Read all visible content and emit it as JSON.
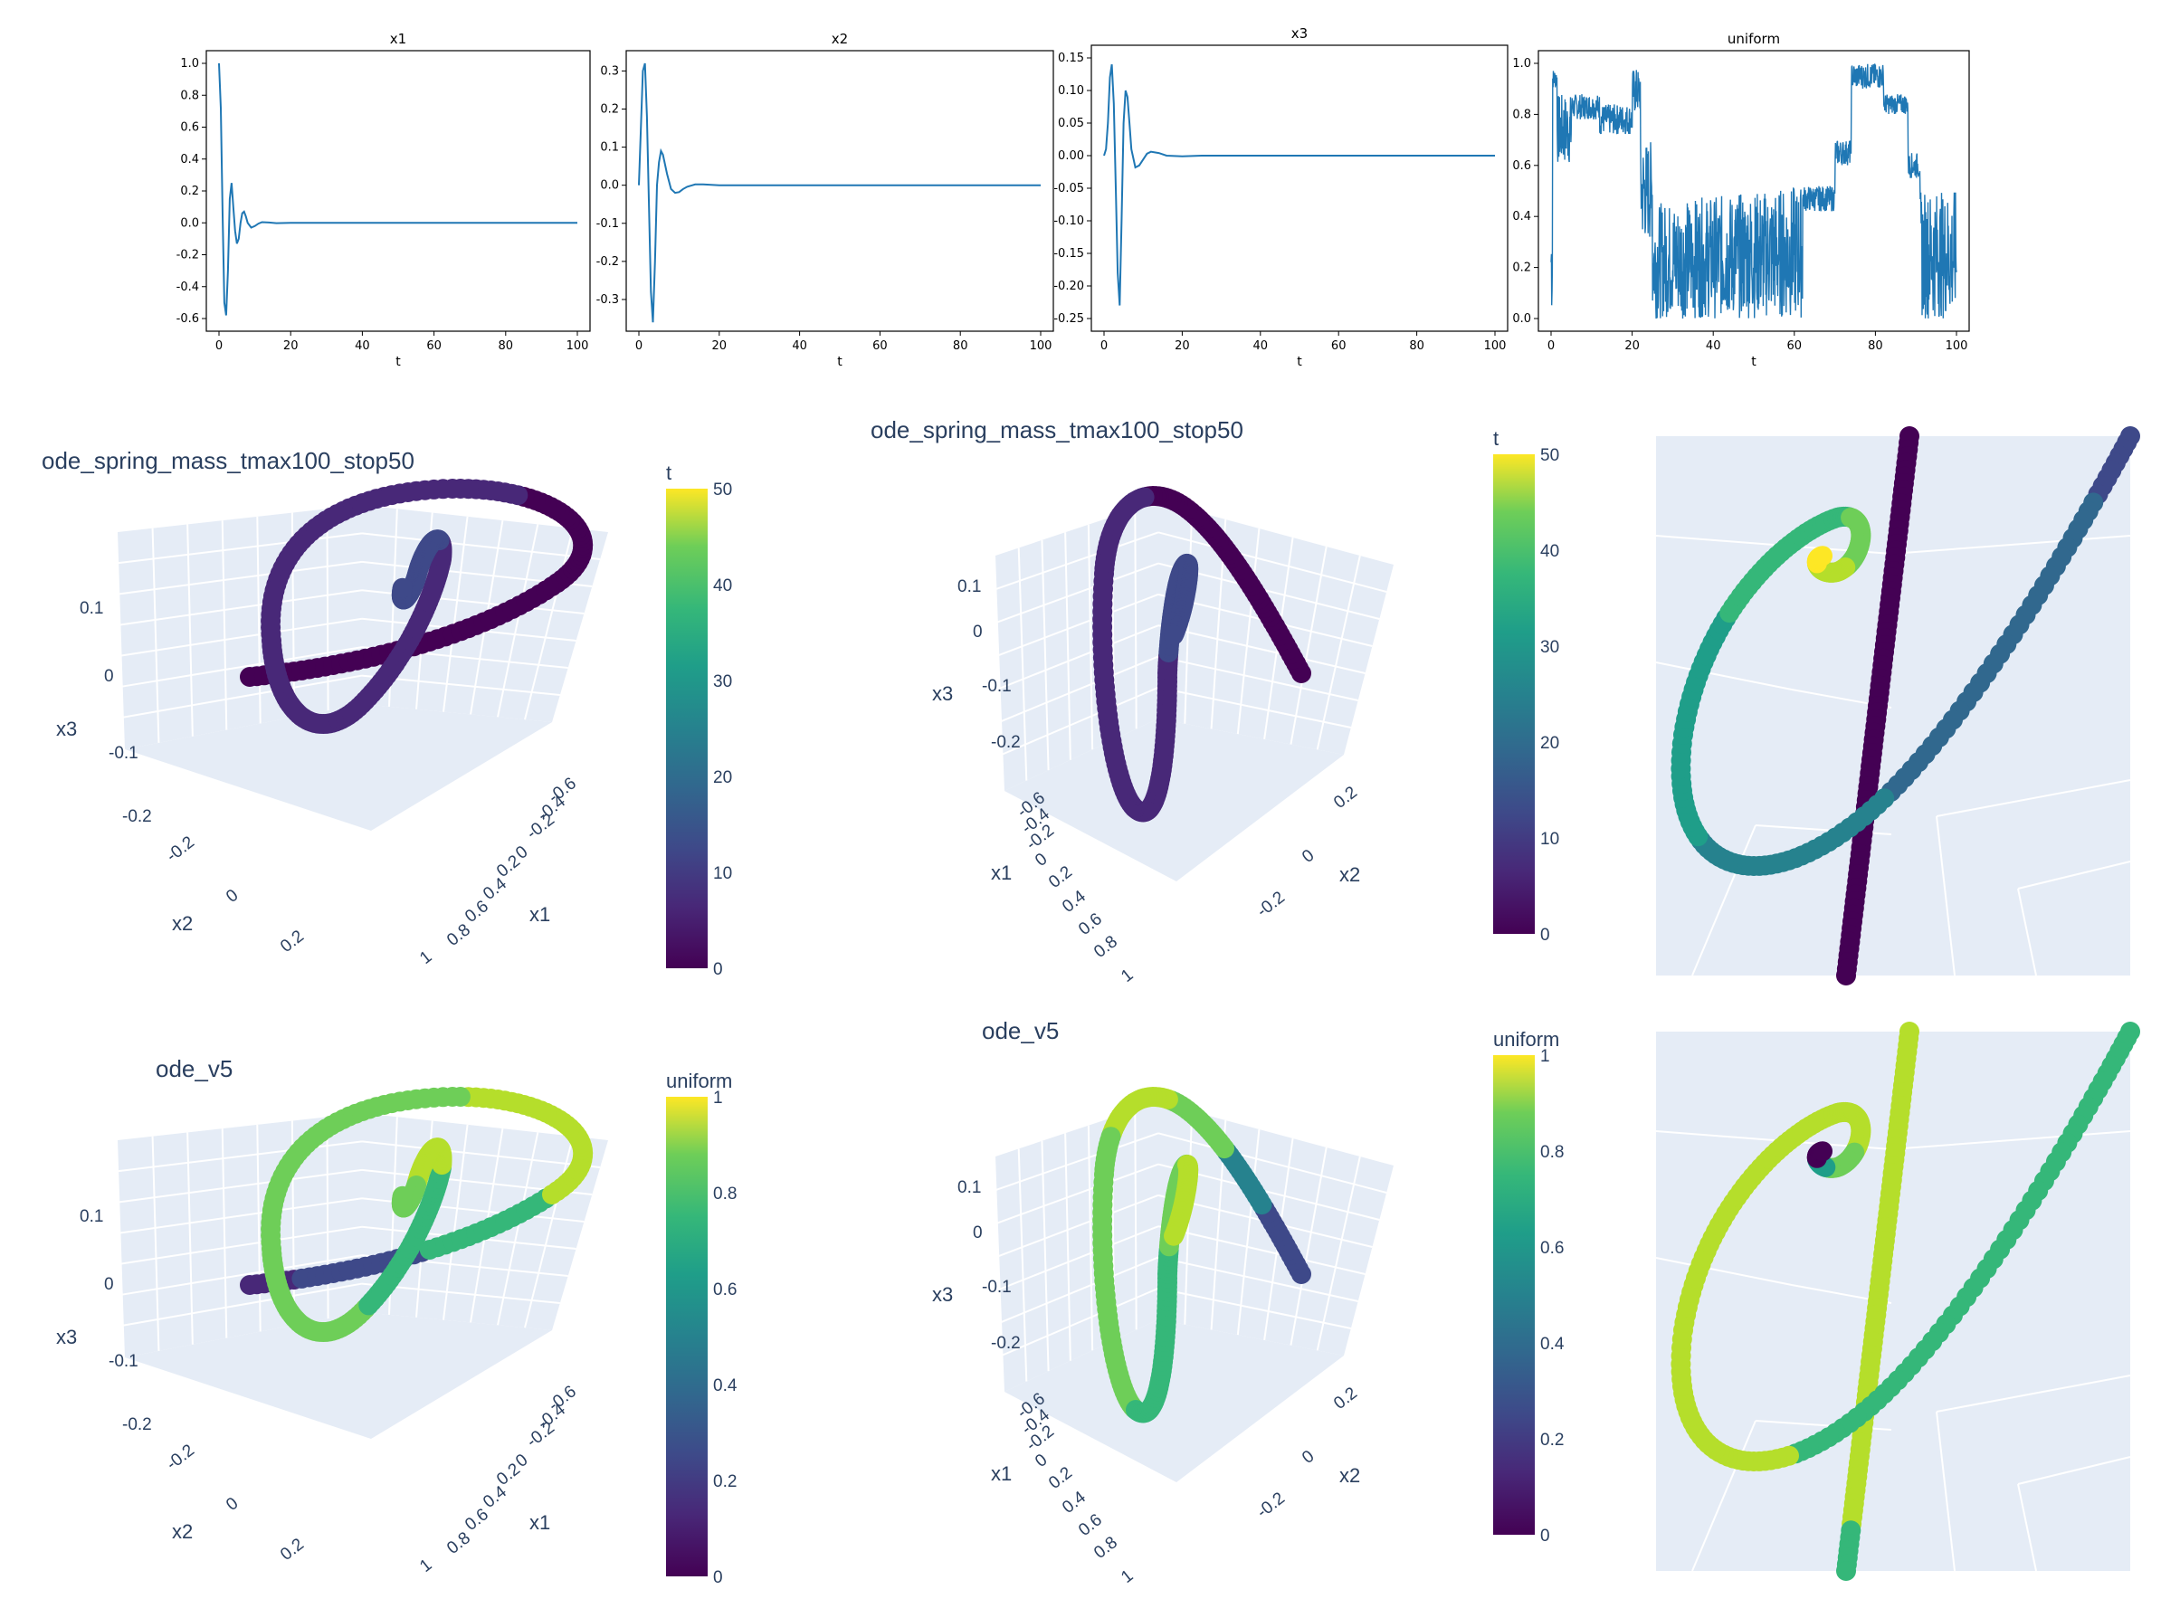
{
  "chart_data": [
    {
      "type": "line",
      "title": "x1",
      "xlabel": "t",
      "xlim": [
        0,
        100
      ],
      "ylim": [
        -0.6,
        1.0
      ],
      "xticks": [
        "0",
        "20",
        "40",
        "60",
        "80",
        "100"
      ],
      "yticks": [
        "-0.6",
        "-0.4",
        "-0.2",
        "0.0",
        "0.2",
        "0.4",
        "0.6",
        "0.8",
        "1.0"
      ],
      "x": [
        0,
        0.5,
        1,
        1.5,
        2,
        2.5,
        3,
        3.5,
        4,
        4.5,
        5,
        5.5,
        6,
        6.5,
        7,
        7.5,
        8,
        9,
        10,
        11,
        12,
        14,
        16,
        20,
        25,
        30,
        40,
        50,
        60,
        70,
        80,
        90,
        100
      ],
      "series": [
        {
          "values": [
            1.0,
            0.72,
            0.05,
            -0.5,
            -0.58,
            -0.3,
            0.15,
            0.25,
            0.1,
            -0.05,
            -0.13,
            -0.1,
            0.0,
            0.06,
            0.07,
            0.04,
            0.0,
            -0.03,
            -0.02,
            -0.005,
            0.004,
            0.002,
            -0.002,
            0.0,
            0.0,
            0.0,
            0.0,
            0.0,
            0.0,
            0.0,
            0.0,
            0.0,
            0.0
          ],
          "color": "#1f77b4"
        }
      ]
    },
    {
      "type": "line",
      "title": "x2",
      "xlabel": "t",
      "xlim": [
        0,
        100
      ],
      "ylim": [
        -0.35,
        0.32
      ],
      "xticks": [
        "0",
        "20",
        "40",
        "60",
        "80",
        "100"
      ],
      "yticks": [
        "-0.3",
        "-0.2",
        "-0.1",
        "0.0",
        "0.1",
        "0.2",
        "0.3"
      ],
      "x": [
        0,
        0.5,
        1,
        1.5,
        2,
        2.5,
        3,
        3.5,
        4,
        4.5,
        5,
        5.5,
        6,
        7,
        8,
        9,
        10,
        11,
        12,
        14,
        16,
        20,
        25,
        30,
        40,
        50,
        60,
        70,
        80,
        90,
        100
      ],
      "series": [
        {
          "values": [
            0.0,
            0.15,
            0.3,
            0.32,
            0.18,
            -0.05,
            -0.28,
            -0.36,
            -0.2,
            0.0,
            0.06,
            0.09,
            0.08,
            0.03,
            -0.01,
            -0.02,
            -0.018,
            -0.01,
            -0.004,
            0.002,
            0.002,
            0.0,
            0.0,
            0.0,
            0.0,
            0.0,
            0.0,
            0.0,
            0.0,
            0.0,
            0.0
          ],
          "color": "#1f77b4"
        }
      ]
    },
    {
      "type": "line",
      "title": "x3",
      "xlabel": "t",
      "xlim": [
        0,
        100
      ],
      "ylim": [
        -0.25,
        0.15
      ],
      "xticks": [
        "0",
        "20",
        "40",
        "60",
        "80",
        "100"
      ],
      "yticks": [
        "-0.25",
        "-0.20",
        "-0.15",
        "-0.10",
        "-0.05",
        "0.00",
        "0.05",
        "0.10",
        "0.15"
      ],
      "x": [
        0,
        0.5,
        1,
        1.5,
        2,
        2.5,
        3,
        3.5,
        4,
        4.5,
        5,
        5.5,
        6,
        6.5,
        7,
        8,
        9,
        10,
        11,
        12,
        14,
        16,
        20,
        25,
        30,
        40,
        50,
        60,
        70,
        80,
        90,
        100
      ],
      "series": [
        {
          "values": [
            0.0,
            0.01,
            0.05,
            0.12,
            0.14,
            0.08,
            -0.05,
            -0.18,
            -0.23,
            -0.1,
            0.05,
            0.1,
            0.09,
            0.05,
            0.01,
            -0.018,
            -0.015,
            -0.006,
            0.003,
            0.006,
            0.004,
            0.0,
            -0.001,
            0.0,
            0.0,
            0.0,
            0.0,
            0.0,
            0.0,
            0.0,
            0.0,
            0.0
          ],
          "color": "#1f77b4"
        }
      ]
    },
    {
      "type": "line",
      "title": "uniform",
      "xlabel": "t",
      "xlim": [
        0,
        100
      ],
      "ylim": [
        0.0,
        1.0
      ],
      "xticks": [
        "0",
        "20",
        "40",
        "60",
        "80",
        "100"
      ],
      "yticks": [
        "0.0",
        "0.2",
        "0.4",
        "0.6",
        "0.8",
        "1.0"
      ],
      "series": [
        {
          "color": "#1f77b4"
        }
      ]
    },
    {
      "type": "scatter3d",
      "title": "ode_spring_mass_tmax100_stop50",
      "axis_labels": {
        "x": "x1",
        "y": "x2",
        "z": "x3"
      },
      "x1_ticks": [
        "-0.6",
        "-0.4",
        "-0.2",
        "0",
        "0.2",
        "0.4",
        "0.6",
        "0.8",
        "1"
      ],
      "x2_ticks": [
        "-0.2",
        "0",
        "0.2"
      ],
      "x3_ticks": [
        "0.1",
        "0",
        "-0.1",
        "-0.2"
      ],
      "colorbar": {
        "title": "t",
        "range": [
          0,
          50
        ],
        "ticks": [
          "0",
          "10",
          "20",
          "30",
          "40",
          "50"
        ],
        "colorscale": "viridis"
      }
    },
    {
      "type": "scatter3d",
      "title": "ode_spring_mass_tmax100_stop50",
      "axis_labels": {
        "x": "x1",
        "y": "x2",
        "z": "x3"
      },
      "x1_ticks": [
        "-0.6",
        "-0.4",
        "-0.2",
        "0",
        "0.2",
        "0.4",
        "0.6",
        "0.8",
        "1"
      ],
      "x2_ticks": [
        "0.2",
        "0",
        "-0.2"
      ],
      "x3_ticks": [
        "0.1",
        "0",
        "-0.1",
        "-0.2"
      ],
      "colorbar": {
        "title": "t",
        "range": [
          0,
          50
        ],
        "ticks": [
          "0",
          "10",
          "20",
          "30",
          "40",
          "50"
        ],
        "colorscale": "viridis"
      }
    },
    {
      "type": "scatter3d",
      "title": "",
      "note_zoom": true
    },
    {
      "type": "scatter3d",
      "title": "ode_v5",
      "axis_labels": {
        "x": "x1",
        "y": "x2",
        "z": "x3"
      },
      "x1_ticks": [
        "-0.6",
        "-0.4",
        "-0.2",
        "0",
        "0.2",
        "0.4",
        "0.6",
        "0.8",
        "1"
      ],
      "x2_ticks": [
        "-0.2",
        "0",
        "0.2"
      ],
      "x3_ticks": [
        "0.1",
        "0",
        "-0.1",
        "-0.2"
      ],
      "colorbar": {
        "title": "uniform",
        "range": [
          0,
          1
        ],
        "ticks": [
          "0",
          "0.2",
          "0.4",
          "0.6",
          "0.8",
          "1"
        ],
        "colorscale": "viridis"
      }
    },
    {
      "type": "scatter3d",
      "title": "ode_v5",
      "axis_labels": {
        "x": "x1",
        "y": "x2",
        "z": "x3"
      },
      "x1_ticks": [
        "-0.6",
        "-0.4",
        "-0.2",
        "0",
        "0.2",
        "0.4",
        "0.6",
        "0.8",
        "1"
      ],
      "x2_ticks": [
        "0.2",
        "0",
        "-0.2"
      ],
      "x3_ticks": [
        "0.1",
        "0",
        "-0.1",
        "-0.2"
      ],
      "colorbar": {
        "title": "uniform",
        "range": [
          0,
          1
        ],
        "ticks": [
          "0",
          "0.2",
          "0.4",
          "0.6",
          "0.8",
          "1"
        ],
        "colorscale": "viridis"
      }
    },
    {
      "type": "scatter3d",
      "title": "",
      "note_zoom": true
    }
  ]
}
